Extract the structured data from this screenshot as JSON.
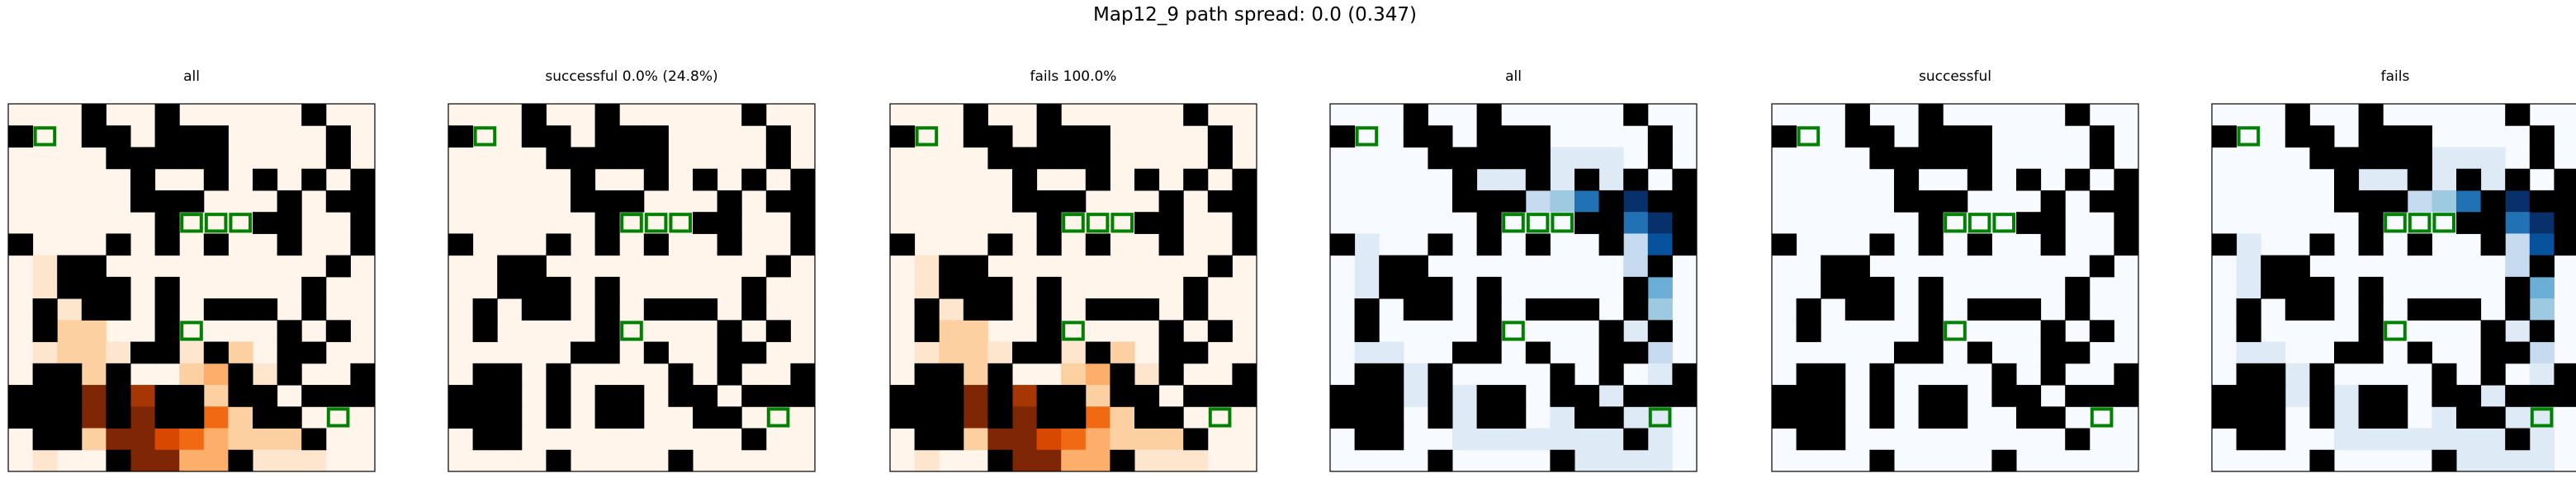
{
  "figure": {
    "suptitle": "Map12_9 path spread: 0.0 (0.347)",
    "grid_size": 15
  },
  "chart_data": [
    {
      "type": "heatmap",
      "title": "all",
      "colormap": "Oranges",
      "heat": "all"
    },
    {
      "type": "heatmap",
      "title": "successful 0.0% (24.8%)",
      "colormap": "Oranges",
      "heat": "zero"
    },
    {
      "type": "heatmap",
      "title": "fails 100.0%",
      "colormap": "Oranges",
      "heat": "all"
    },
    {
      "type": "heatmap",
      "title": "all",
      "colormap": "Blues",
      "heat": "all"
    },
    {
      "type": "heatmap",
      "title": "successful",
      "colormap": "Blues",
      "heat": "zero"
    },
    {
      "type": "heatmap",
      "title": "fails",
      "colormap": "Blues",
      "heat": "all"
    }
  ],
  "colormaps": {
    "Oranges": [
      "#fff5eb",
      "#fee6ce",
      "#fdd0a2",
      "#fdae6b",
      "#fd8d3c",
      "#f16913",
      "#d94801",
      "#a63603",
      "#7f2704"
    ],
    "Blues": [
      "#f7fbff",
      "#deebf7",
      "#c6dbef",
      "#9ecae1",
      "#6baed6",
      "#4292c6",
      "#2171b5",
      "#08519c",
      "#08306b"
    ]
  },
  "colors": {
    "wall": "#000000",
    "marker": "#008000",
    "frame": "#000000"
  },
  "walls": [
    [
      0,
      3
    ],
    [
      0,
      6
    ],
    [
      0,
      12
    ],
    [
      1,
      0
    ],
    [
      1,
      3
    ],
    [
      1,
      4
    ],
    [
      1,
      6
    ],
    [
      1,
      7
    ],
    [
      1,
      8
    ],
    [
      1,
      13
    ],
    [
      2,
      4
    ],
    [
      2,
      5
    ],
    [
      2,
      6
    ],
    [
      2,
      7
    ],
    [
      2,
      8
    ],
    [
      2,
      13
    ],
    [
      3,
      5
    ],
    [
      3,
      8
    ],
    [
      3,
      10
    ],
    [
      3,
      12
    ],
    [
      3,
      14
    ],
    [
      4,
      5
    ],
    [
      4,
      6
    ],
    [
      4,
      7
    ],
    [
      4,
      11
    ],
    [
      4,
      13
    ],
    [
      4,
      14
    ],
    [
      5,
      6
    ],
    [
      5,
      10
    ],
    [
      5,
      11
    ],
    [
      5,
      14
    ],
    [
      6,
      0
    ],
    [
      6,
      4
    ],
    [
      6,
      6
    ],
    [
      6,
      8
    ],
    [
      6,
      11
    ],
    [
      6,
      14
    ],
    [
      7,
      2
    ],
    [
      7,
      3
    ],
    [
      7,
      13
    ],
    [
      8,
      2
    ],
    [
      8,
      3
    ],
    [
      8,
      4
    ],
    [
      8,
      6
    ],
    [
      8,
      12
    ],
    [
      9,
      1
    ],
    [
      9,
      3
    ],
    [
      9,
      4
    ],
    [
      9,
      6
    ],
    [
      9,
      8
    ],
    [
      9,
      9
    ],
    [
      9,
      10
    ],
    [
      9,
      12
    ],
    [
      10,
      1
    ],
    [
      10,
      6
    ],
    [
      10,
      11
    ],
    [
      10,
      13
    ],
    [
      11,
      5
    ],
    [
      11,
      6
    ],
    [
      11,
      8
    ],
    [
      11,
      11
    ],
    [
      11,
      12
    ],
    [
      12,
      1
    ],
    [
      12,
      2
    ],
    [
      12,
      4
    ],
    [
      12,
      9
    ],
    [
      12,
      11
    ],
    [
      12,
      14
    ],
    [
      13,
      0
    ],
    [
      13,
      1
    ],
    [
      13,
      2
    ],
    [
      13,
      4
    ],
    [
      13,
      6
    ],
    [
      13,
      7
    ],
    [
      13,
      9
    ],
    [
      13,
      10
    ],
    [
      13,
      12
    ],
    [
      13,
      13
    ],
    [
      13,
      14
    ],
    [
      14,
      0
    ],
    [
      14,
      1
    ],
    [
      14,
      2
    ],
    [
      14,
      4
    ],
    [
      14,
      6
    ],
    [
      14,
      7
    ],
    [
      14,
      10
    ],
    [
      14,
      11
    ],
    [
      15,
      1
    ],
    [
      15,
      2
    ],
    [
      15,
      12
    ],
    [
      16,
      4
    ],
    [
      16,
      9
    ]
  ],
  "markers": [
    [
      1,
      1
    ],
    [
      5,
      7
    ],
    [
      5,
      8
    ],
    [
      5,
      9
    ],
    [
      10,
      7
    ],
    [
      14,
      13
    ]
  ],
  "heat": {
    "oranges": [
      [
        7,
        1,
        1
      ],
      [
        8,
        1,
        1
      ],
      [
        9,
        1,
        1
      ],
      [
        10,
        1,
        1
      ],
      [
        11,
        1,
        1
      ],
      [
        12,
        1,
        1
      ],
      [
        13,
        1,
        1
      ],
      [
        14,
        1,
        1
      ],
      [
        15,
        1,
        1
      ],
      [
        16,
        1,
        1
      ],
      [
        9,
        2,
        1
      ],
      [
        10,
        2,
        2
      ],
      [
        11,
        2,
        2
      ],
      [
        12,
        2,
        2
      ],
      [
        13,
        2,
        1
      ],
      [
        14,
        2,
        1
      ],
      [
        10,
        3,
        2
      ],
      [
        11,
        3,
        2
      ],
      [
        12,
        3,
        2
      ],
      [
        11,
        4,
        1
      ],
      [
        12,
        4,
        1
      ],
      [
        11,
        7,
        1
      ],
      [
        11,
        8,
        2
      ],
      [
        11,
        9,
        2
      ],
      [
        12,
        7,
        2
      ],
      [
        12,
        8,
        3
      ],
      [
        12,
        9,
        2
      ],
      [
        12,
        10,
        1
      ],
      [
        13,
        3,
        8
      ],
      [
        13,
        4,
        8
      ],
      [
        13,
        5,
        7
      ],
      [
        13,
        8,
        2
      ],
      [
        13,
        9,
        2
      ],
      [
        14,
        3,
        8
      ],
      [
        14,
        4,
        9
      ],
      [
        14,
        5,
        8
      ],
      [
        14,
        6,
        6
      ],
      [
        14,
        7,
        5
      ],
      [
        14,
        8,
        5
      ],
      [
        14,
        9,
        2
      ],
      [
        15,
        3,
        2
      ],
      [
        15,
        4,
        8
      ],
      [
        15,
        5,
        9
      ],
      [
        15,
        6,
        6
      ],
      [
        15,
        7,
        5
      ],
      [
        15,
        8,
        3
      ],
      [
        15,
        9,
        2
      ],
      [
        15,
        10,
        2
      ],
      [
        15,
        11,
        2
      ],
      [
        16,
        5,
        9
      ],
      [
        16,
        6,
        9
      ],
      [
        16,
        7,
        3
      ],
      [
        16,
        8,
        3
      ],
      [
        16,
        10,
        1
      ],
      [
        16,
        11,
        1
      ],
      [
        16,
        12,
        1
      ]
    ],
    "blues": [
      [
        2,
        9,
        1
      ],
      [
        2,
        10,
        1
      ],
      [
        2,
        11,
        1
      ],
      [
        3,
        6,
        1
      ],
      [
        3,
        7,
        1
      ],
      [
        3,
        8,
        1
      ],
      [
        3,
        9,
        1
      ],
      [
        3,
        10,
        1
      ],
      [
        3,
        11,
        1
      ],
      [
        3,
        12,
        1
      ],
      [
        4,
        8,
        2
      ],
      [
        4,
        9,
        3
      ],
      [
        4,
        10,
        6
      ],
      [
        4,
        11,
        8
      ],
      [
        4,
        12,
        9
      ],
      [
        4,
        13,
        9
      ],
      [
        5,
        10,
        3
      ],
      [
        5,
        11,
        4
      ],
      [
        5,
        12,
        6
      ],
      [
        5,
        13,
        9
      ],
      [
        6,
        12,
        2
      ],
      [
        6,
        13,
        7
      ],
      [
        7,
        12,
        2
      ],
      [
        7,
        13,
        6
      ],
      [
        8,
        12,
        1
      ],
      [
        8,
        13,
        4
      ],
      [
        9,
        13,
        3
      ],
      [
        10,
        12,
        1
      ],
      [
        10,
        13,
        2
      ],
      [
        11,
        13,
        2
      ],
      [
        12,
        13,
        1
      ],
      [
        13,
        11,
        1
      ],
      [
        13,
        13,
        1
      ],
      [
        14,
        9,
        1
      ],
      [
        14,
        10,
        1
      ],
      [
        14,
        12,
        1
      ],
      [
        14,
        13,
        1
      ],
      [
        15,
        10,
        1
      ],
      [
        15,
        11,
        1
      ],
      [
        15,
        12,
        1
      ],
      [
        15,
        13,
        1
      ],
      [
        16,
        10,
        1
      ],
      [
        16,
        11,
        1
      ],
      [
        16,
        12,
        1
      ],
      [
        16,
        13,
        1
      ],
      [
        11,
        1,
        1
      ],
      [
        11,
        2,
        1
      ],
      [
        10,
        1,
        1
      ],
      [
        12,
        1,
        1
      ],
      [
        6,
        1,
        1
      ],
      [
        7,
        1,
        1
      ],
      [
        8,
        1,
        1
      ],
      [
        9,
        1,
        1
      ],
      [
        12,
        3,
        1
      ],
      [
        12,
        4,
        1
      ],
      [
        13,
        3,
        1
      ],
      [
        13,
        5,
        1
      ],
      [
        14,
        5,
        1
      ],
      [
        15,
        5,
        1
      ],
      [
        15,
        6,
        1
      ],
      [
        15,
        7,
        1
      ],
      [
        15,
        8,
        1
      ],
      [
        15,
        9,
        1
      ]
    ]
  }
}
